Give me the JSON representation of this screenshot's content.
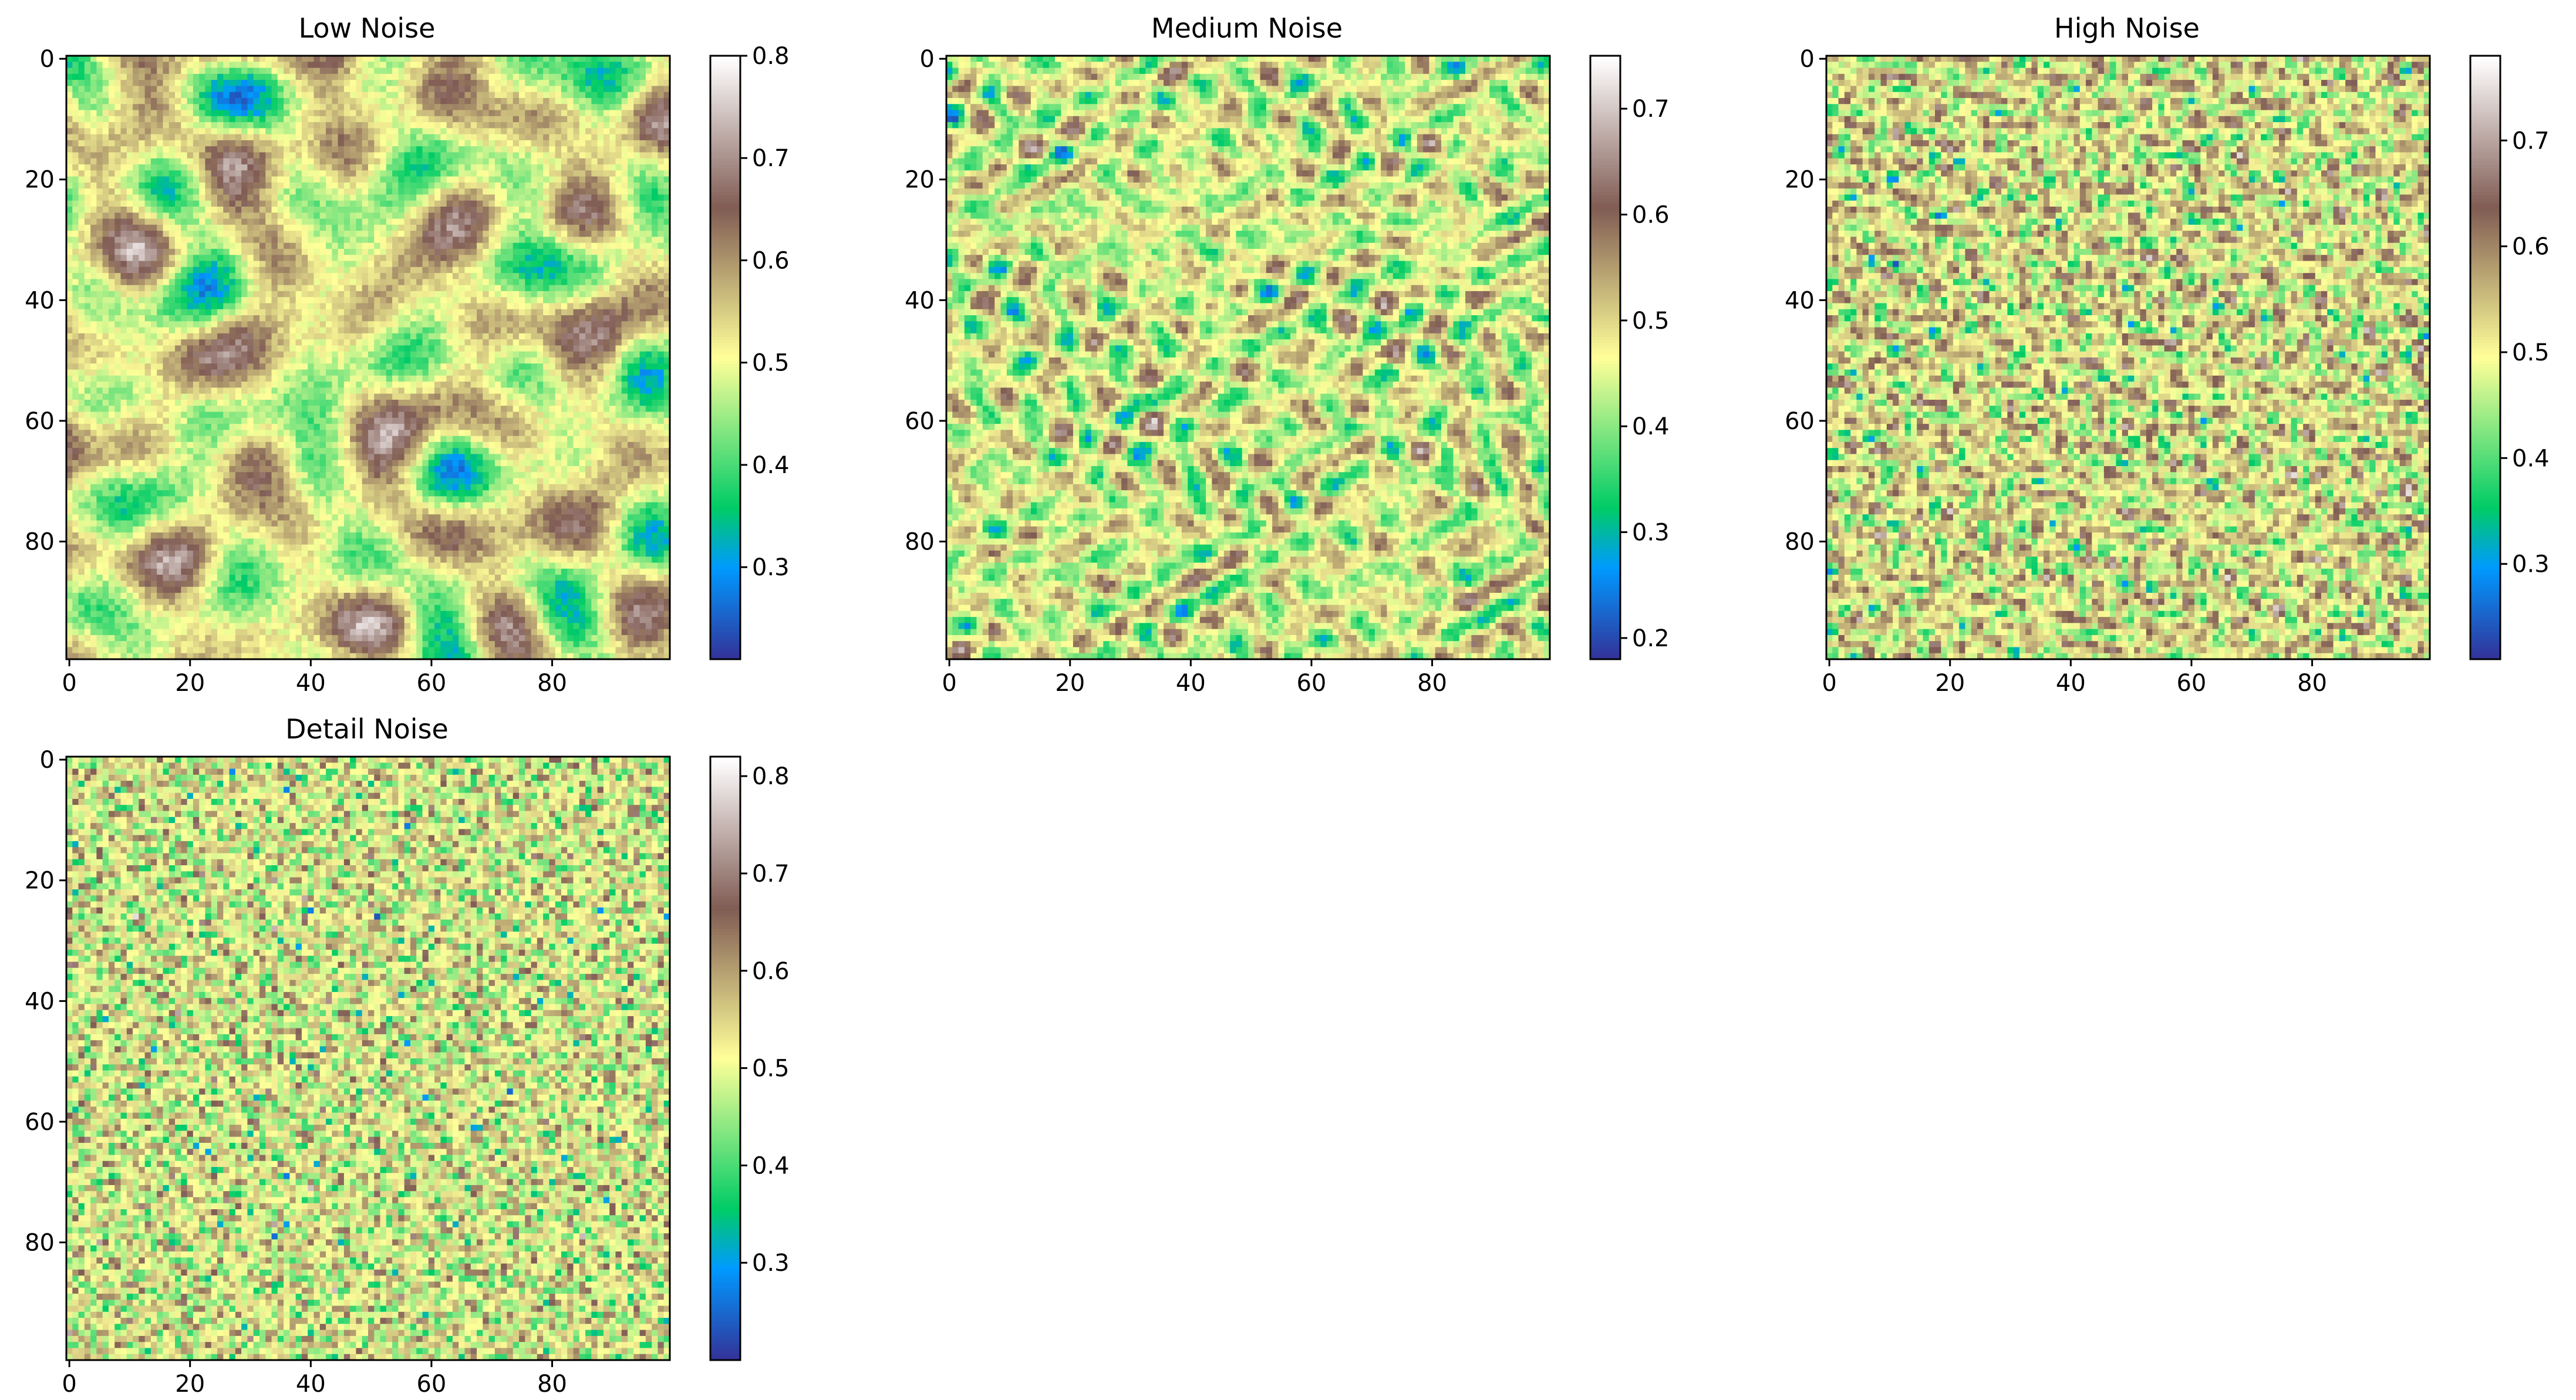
{
  "figure": {
    "background": "#ffffff"
  },
  "colormap": {
    "name": "terrain",
    "stops": [
      [
        0.0,
        "#333399"
      ],
      [
        0.15,
        "#0099ff"
      ],
      [
        0.25,
        "#00cc66"
      ],
      [
        0.5,
        "#ffff99"
      ],
      [
        0.75,
        "#805c54"
      ],
      [
        1.0,
        "#ffffff"
      ]
    ]
  },
  "chart_data": [
    {
      "type": "heatmap",
      "title": "Low Noise",
      "grid_size": [
        100,
        100
      ],
      "noise_scale": "low",
      "xticks": [
        "0",
        "20",
        "40",
        "60",
        "80"
      ],
      "yticks": [
        "0",
        "20",
        "40",
        "60",
        "80"
      ],
      "value_range": [
        0.21,
        0.8
      ],
      "colorbar_ticks": [
        "0.3",
        "0.4",
        "0.5",
        "0.6",
        "0.7",
        "0.8"
      ],
      "colorbar_tick_values": [
        0.3,
        0.4,
        0.5,
        0.6,
        0.7,
        0.8
      ]
    },
    {
      "type": "heatmap",
      "title": "Medium Noise",
      "grid_size": [
        100,
        100
      ],
      "noise_scale": "medium",
      "xticks": [
        "0",
        "20",
        "40",
        "60",
        "80"
      ],
      "yticks": [
        "0",
        "20",
        "40",
        "60",
        "80"
      ],
      "value_range": [
        0.18,
        0.75
      ],
      "colorbar_ticks": [
        "0.2",
        "0.3",
        "0.4",
        "0.5",
        "0.6",
        "0.7"
      ],
      "colorbar_tick_values": [
        0.2,
        0.3,
        0.4,
        0.5,
        0.6,
        0.7
      ]
    },
    {
      "type": "heatmap",
      "title": "High Noise",
      "grid_size": [
        100,
        100
      ],
      "noise_scale": "high",
      "xticks": [
        "0",
        "20",
        "40",
        "60",
        "80"
      ],
      "yticks": [
        "0",
        "20",
        "40",
        "60",
        "80"
      ],
      "value_range": [
        0.21,
        0.78
      ],
      "colorbar_ticks": [
        "0.3",
        "0.4",
        "0.5",
        "0.6",
        "0.7"
      ],
      "colorbar_tick_values": [
        0.3,
        0.4,
        0.5,
        0.6,
        0.7
      ]
    },
    {
      "type": "heatmap",
      "title": "Detail Noise",
      "grid_size": [
        100,
        100
      ],
      "noise_scale": "detail",
      "xticks": [
        "0",
        "20",
        "40",
        "60",
        "80"
      ],
      "yticks": [
        "0",
        "20",
        "40",
        "60",
        "80"
      ],
      "value_range": [
        0.2,
        0.82
      ],
      "colorbar_ticks": [
        "0.3",
        "0.4",
        "0.5",
        "0.6",
        "0.7",
        "0.8"
      ],
      "colorbar_tick_values": [
        0.3,
        0.4,
        0.5,
        0.6,
        0.7,
        0.8
      ]
    }
  ]
}
